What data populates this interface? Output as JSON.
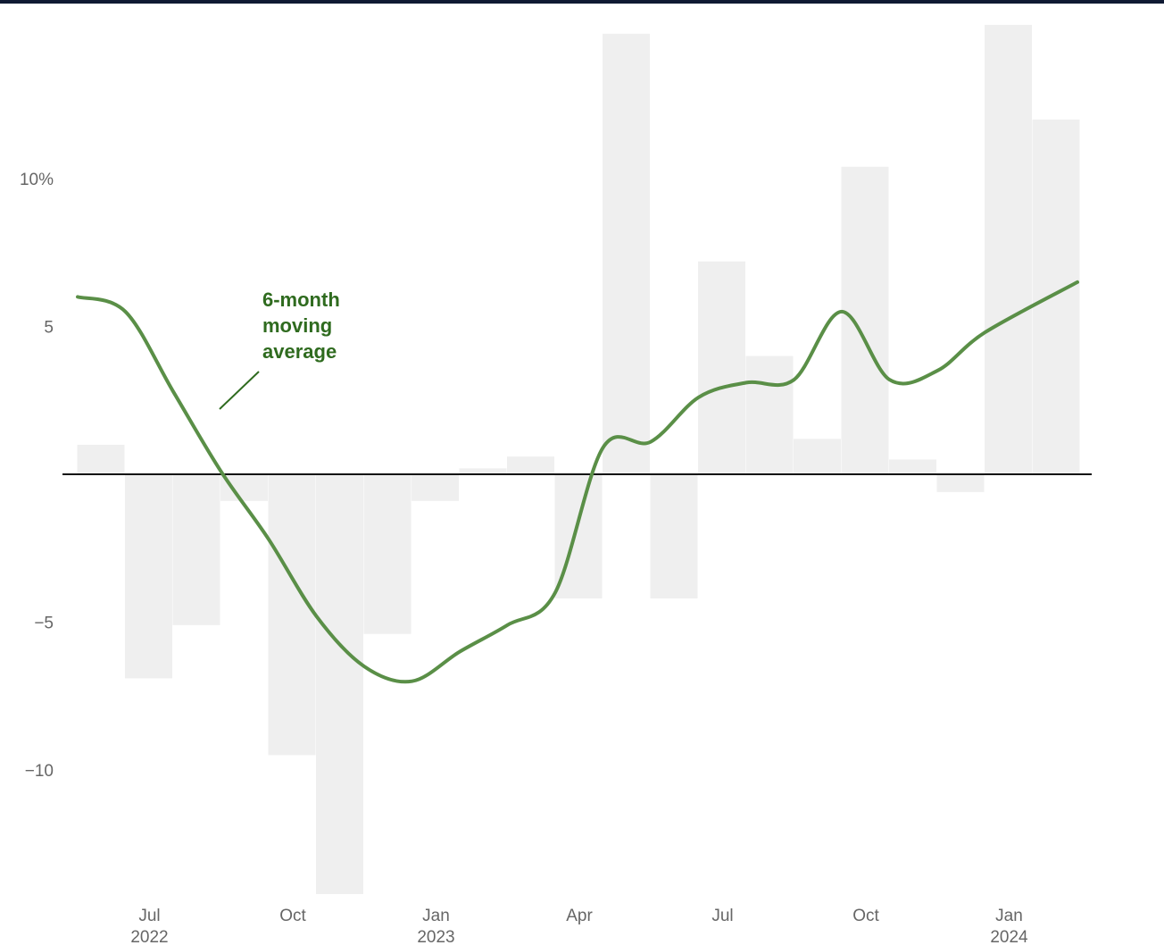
{
  "colors": {
    "top_bar": "#0f1a33",
    "bar": "#efefef",
    "line": "#5a8f47",
    "annotation": "#2f6b1f",
    "zero_line": "#111111",
    "tick_text": "#666666"
  },
  "chart_data": {
    "type": "bar",
    "title": "",
    "xlabel": "",
    "ylabel": "",
    "ylim": [
      -14.3,
      15.2
    ],
    "grid": false,
    "y_ticks": [
      {
        "value": 10,
        "label": "10%"
      },
      {
        "value": 5,
        "label": "5"
      },
      {
        "value": -5,
        "label": "−5"
      },
      {
        "value": -10,
        "label": "−10"
      }
    ],
    "x_ticks": [
      {
        "month": "2022-07",
        "label": "Jul",
        "year": "2022"
      },
      {
        "month": "2022-10",
        "label": "Oct",
        "year": ""
      },
      {
        "month": "2023-01",
        "label": "Jan",
        "year": "2023"
      },
      {
        "month": "2023-04",
        "label": "Apr",
        "year": ""
      },
      {
        "month": "2023-07",
        "label": "Jul",
        "year": ""
      },
      {
        "month": "2023-10",
        "label": "Oct",
        "year": ""
      },
      {
        "month": "2024-01",
        "label": "Jan",
        "year": "2024"
      }
    ],
    "bars": {
      "months": [
        "2022-06",
        "2022-07",
        "2022-08",
        "2022-09",
        "2022-10",
        "2022-11",
        "2022-12",
        "2023-01",
        "2023-02",
        "2023-03",
        "2023-04",
        "2023-05",
        "2023-06",
        "2023-07",
        "2023-08",
        "2023-09",
        "2023-10",
        "2023-11",
        "2023-12",
        "2024-01",
        "2024-02"
      ],
      "values": [
        1.0,
        -6.9,
        -5.1,
        -0.9,
        -9.5,
        -14.2,
        -5.4,
        -0.9,
        0.2,
        0.6,
        -4.2,
        14.9,
        -4.2,
        7.2,
        4.0,
        1.2,
        10.4,
        0.5,
        -0.6,
        15.2,
        12.0
      ]
    },
    "series": [
      {
        "name": "6-month moving average",
        "months": [
          "2022-06",
          "2022-07",
          "2022-08",
          "2022-09",
          "2022-10",
          "2022-11",
          "2022-12",
          "2023-01",
          "2023-02",
          "2023-03",
          "2023-04",
          "2023-05",
          "2023-06",
          "2023-07",
          "2023-08",
          "2023-09",
          "2023-10",
          "2023-11",
          "2023-12",
          "2024-01",
          "2024-02"
        ],
        "values": [
          6.0,
          5.5,
          2.8,
          0.1,
          -2.2,
          -4.8,
          -6.5,
          -7.0,
          -6.0,
          -5.1,
          -4.0,
          0.9,
          1.1,
          2.6,
          3.1,
          3.2,
          5.5,
          3.2,
          3.5,
          4.8,
          6.5
        ]
      }
    ],
    "annotation": {
      "lines": [
        "6-month",
        "moving",
        "average"
      ]
    }
  }
}
